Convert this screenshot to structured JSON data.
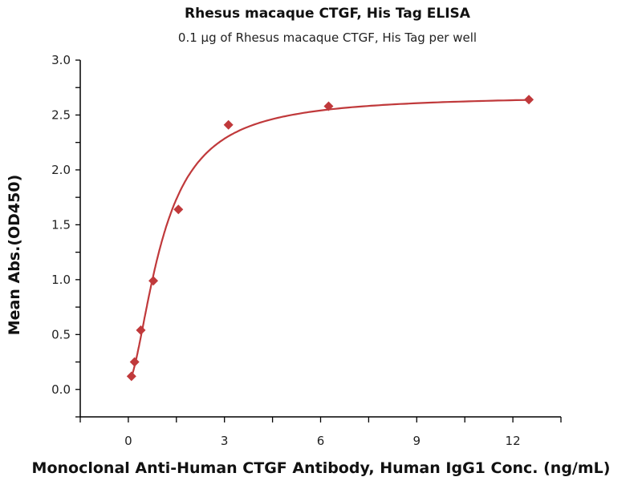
{
  "chart_data": {
    "type": "scatter",
    "title": "Rhesus macaque CTGF, His Tag ELISA",
    "subtitle": "0.1 μg of Rhesus macaque CTGF, His Tag per well",
    "xlabel": "Monoclonal Anti-Human CTGF Antibody, Human IgG1 Conc. (ng/mL)",
    "ylabel": "Mean Abs.(OD450)",
    "xlim": [
      -1.5,
      13.5
    ],
    "ylim": [
      -0.25,
      3.0
    ],
    "x_ticks": [
      "0",
      "3",
      "6",
      "9",
      "12"
    ],
    "y_ticks": [
      "0.0",
      "0.5",
      "1.0",
      "1.5",
      "2.0",
      "2.5",
      "3.0"
    ],
    "grid": false,
    "marker": "diamond",
    "fit": "sigmoidal curve",
    "color": "#c0393b",
    "series": [
      {
        "x": [
          0.098,
          0.195,
          0.39,
          0.78,
          1.5625,
          3.125,
          6.25,
          12.5
        ],
        "y": [
          0.12,
          0.25,
          0.54,
          0.99,
          1.64,
          2.41,
          2.58,
          2.64
        ]
      }
    ]
  }
}
